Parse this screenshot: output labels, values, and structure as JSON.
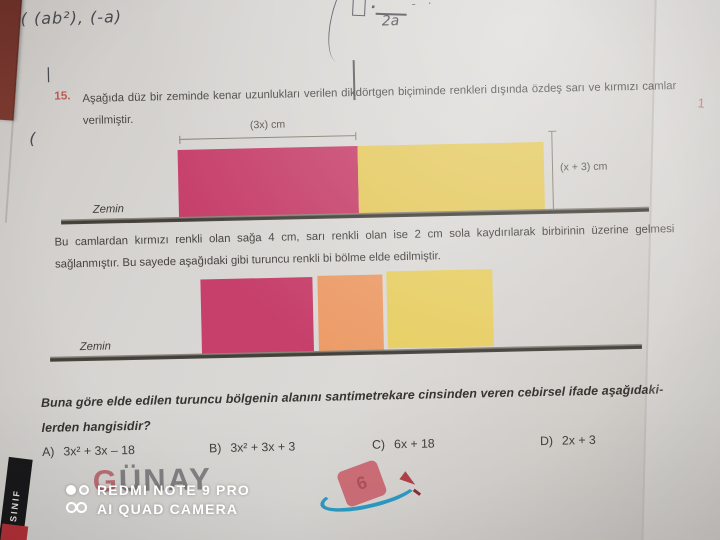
{
  "handwriting": {
    "expression": "( (ab²), (-a)",
    "margin_tick": "|",
    "margin_paren": "(",
    "fraction": {
      "numerator_box": "□",
      "denominator": "2a"
    },
    "stray_marks": "- ·"
  },
  "question": {
    "number": "15.",
    "intro_text": "Aşağıda düz bir zeminde kenar uzunlukları verilen dikdörtgen biçiminde renkleri dışında özdeş sarı ve kırmızı camlar verilmiştir.",
    "middle_text": "Bu camlardan kırmızı renkli olan sağa 4 cm, sarı renkli olan ise 2 cm sola kaydırılarak birbirinin üzerine gelmesi sağlanmıştır. Bu sayede aşağıdaki gibi turuncu renkli bi bölme elde edilmiştir.",
    "final_line1": "Buna göre elde edilen turuncu bölgenin alanını santimetrekare cinsinden veren cebirsel ifade aşağıdaki-",
    "final_line2": "lerden hangisidir?"
  },
  "diagram_top": {
    "width_label": "(3x) cm",
    "height_label": "(x + 3) cm",
    "ground_label": "Zemin",
    "glass_colors": {
      "red": "#c6406b",
      "yellow": "#e4c95f"
    }
  },
  "diagram_bottom": {
    "ground_label": "Zemin",
    "glass_colors": {
      "red": "#c6406b",
      "orange": "#ec9c68",
      "yellow": "#e7ce64"
    }
  },
  "options": [
    {
      "label": "A)",
      "value": "3x² + 3x – 18"
    },
    {
      "label": "B)",
      "value": "3x² + 3x + 3"
    },
    {
      "label": "C)",
      "value": "6x + 18"
    },
    {
      "label": "D)",
      "value": "2x + 3"
    }
  ],
  "watermark": {
    "line1": "REDMI NOTE 9 PRO",
    "line2": "AI QUAD CAMERA"
  },
  "branding": {
    "publisher_initial": "G",
    "publisher_rest": "ÜNAY",
    "spine_text": "SINIF",
    "grade_badge": "6"
  },
  "margin_note": "1",
  "colors": {
    "question_number_red": "#bf5a52",
    "swoosh_blue": "#2e9cc6",
    "badge_pink": "#cf6f78",
    "ground_dark": "#3e3c37"
  }
}
